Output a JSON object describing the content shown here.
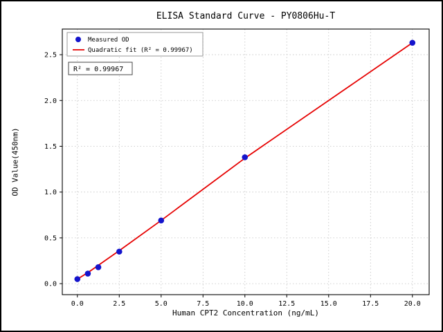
{
  "chart_data": {
    "type": "scatter",
    "title": "ELISA Standard Curve - PY0806Hu-T",
    "xlabel": "Human CPT2 Concentration (ng/mL)",
    "ylabel": "OD Value(450nm)",
    "x_ticks": [
      0.0,
      2.5,
      5.0,
      7.5,
      10.0,
      12.5,
      15.0,
      17.5,
      20.0
    ],
    "x_tick_labels": [
      "0.0",
      "2.5",
      "5.0",
      "7.5",
      "10.0",
      "12.5",
      "15.0",
      "17.5",
      "20.0"
    ],
    "y_ticks": [
      0.0,
      0.5,
      1.0,
      1.5,
      2.0,
      2.5
    ],
    "y_tick_labels": [
      "0.0",
      "0.5",
      "1.0",
      "1.5",
      "2.0",
      "2.5"
    ],
    "xlim": [
      -0.9,
      21.0
    ],
    "ylim": [
      -0.12,
      2.78
    ],
    "grid": true,
    "grid_color": "#c0c0c0",
    "legend_position": "upper-left",
    "series": [
      {
        "name": "Measured OD",
        "type": "scatter",
        "color": "#1414cc",
        "x": [
          0,
          0.625,
          1.25,
          2.5,
          5,
          10,
          20
        ],
        "y": [
          0.05,
          0.11,
          0.18,
          0.35,
          0.69,
          1.38,
          2.63
        ]
      },
      {
        "name": "Quadratic fit (R² = 0.99967)",
        "type": "line",
        "color": "#e60000",
        "x": [
          0,
          0.625,
          1.25,
          2.5,
          5,
          10,
          20
        ],
        "y": [
          0.05,
          0.12,
          0.2,
          0.36,
          0.69,
          1.37,
          2.63
        ]
      }
    ],
    "annotation": "R² = 0.99967"
  }
}
